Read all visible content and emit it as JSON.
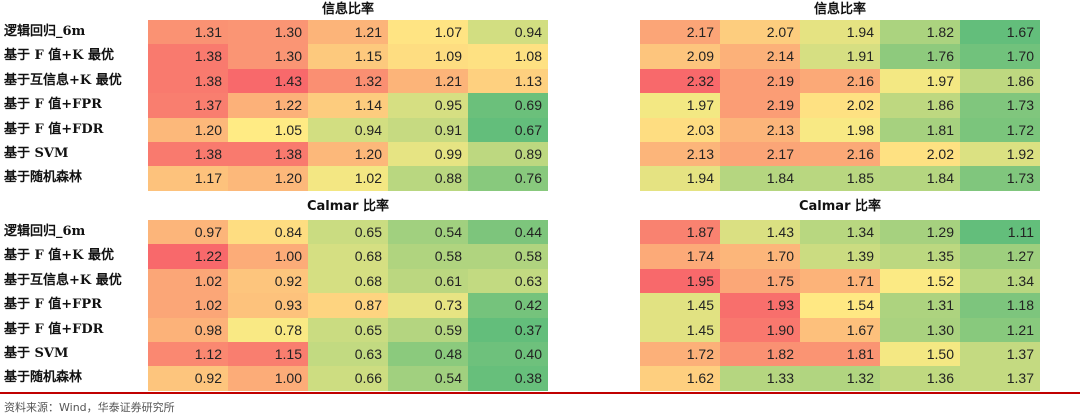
{
  "chart_data": {
    "type": "heatmap",
    "row_labels": [
      "逻辑回归_6m",
      "基于 F 值+K 最优",
      "基于互信息+K 最优",
      "基于 F 值+FPR",
      "基于 F 值+FDR",
      "基于 SVM",
      "基于随机森林"
    ],
    "panels": [
      {
        "title": "信息比率",
        "values": [
          [
            1.31,
            1.3,
            1.21,
            1.07,
            0.94
          ],
          [
            1.38,
            1.3,
            1.15,
            1.09,
            1.08
          ],
          [
            1.38,
            1.43,
            1.32,
            1.21,
            1.13
          ],
          [
            1.37,
            1.22,
            1.14,
            0.95,
            0.69
          ],
          [
            1.2,
            1.05,
            0.94,
            0.91,
            0.67
          ],
          [
            1.38,
            1.38,
            1.2,
            0.99,
            0.89
          ],
          [
            1.17,
            1.2,
            1.02,
            0.88,
            0.76
          ]
        ]
      },
      {
        "title": "信息比率",
        "values": [
          [
            2.17,
            2.07,
            1.94,
            1.82,
            1.67
          ],
          [
            2.09,
            2.14,
            1.91,
            1.76,
            1.7
          ],
          [
            2.32,
            2.19,
            2.16,
            1.97,
            1.86
          ],
          [
            1.97,
            2.19,
            2.02,
            1.86,
            1.73
          ],
          [
            2.03,
            2.13,
            1.98,
            1.81,
            1.72
          ],
          [
            2.13,
            2.17,
            2.16,
            2.02,
            1.92
          ],
          [
            1.94,
            1.84,
            1.85,
            1.84,
            1.73
          ]
        ]
      },
      {
        "title": "Calmar 比率",
        "values": [
          [
            0.97,
            0.84,
            0.65,
            0.54,
            0.44
          ],
          [
            1.22,
            1.0,
            0.68,
            0.58,
            0.58
          ],
          [
            1.02,
            0.92,
            0.68,
            0.61,
            0.63
          ],
          [
            1.02,
            0.93,
            0.87,
            0.73,
            0.42
          ],
          [
            0.98,
            0.78,
            0.65,
            0.59,
            0.37
          ],
          [
            1.12,
            1.15,
            0.63,
            0.48,
            0.4
          ],
          [
            0.92,
            1.0,
            0.66,
            0.54,
            0.38
          ]
        ]
      },
      {
        "title": "Calmar 比率",
        "values": [
          [
            1.87,
            1.43,
            1.34,
            1.29,
            1.11
          ],
          [
            1.74,
            1.7,
            1.39,
            1.35,
            1.27
          ],
          [
            1.95,
            1.75,
            1.71,
            1.52,
            1.34
          ],
          [
            1.45,
            1.93,
            1.54,
            1.31,
            1.18
          ],
          [
            1.45,
            1.9,
            1.67,
            1.3,
            1.21
          ],
          [
            1.72,
            1.82,
            1.81,
            1.5,
            1.37
          ],
          [
            1.62,
            1.33,
            1.32,
            1.36,
            1.37
          ]
        ]
      }
    ],
    "colors": {
      "low": "#63be7b",
      "mid": "#ffeb84",
      "high": "#f8696b"
    }
  },
  "source": "资料来源：Wind，华泰证券研究所"
}
